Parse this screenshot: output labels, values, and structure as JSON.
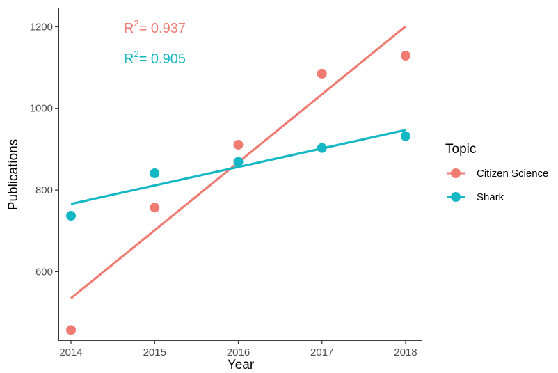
{
  "chart_data": {
    "type": "scatter",
    "title": "",
    "xlabel": "Year",
    "ylabel": "Publications",
    "xlim": [
      2013.85,
      2018.2
    ],
    "ylim": [
      432,
      1245
    ],
    "x_ticks": [
      2014,
      2015,
      2016,
      2017,
      2018
    ],
    "y_ticks": [
      600,
      800,
      1000,
      1200
    ],
    "x": [
      2014,
      2015,
      2016,
      2017,
      2018
    ],
    "grid": false,
    "legend": {
      "title": "Topic",
      "placement": "right"
    },
    "series": [
      {
        "name": "Citizen Science",
        "color": "#F07B72",
        "points": [
          457,
          757,
          911,
          1085,
          1129
        ],
        "fit": {
          "type": "linear",
          "start": [
            2014,
            535
          ],
          "end": [
            2018,
            1201
          ]
        },
        "r2": {
          "label": "R",
          "sup": "2",
          "value": "= 0.937"
        }
      },
      {
        "name": "Shark",
        "color": "#14B8C4",
        "points": [
          737,
          841,
          869,
          903,
          932
        ],
        "fit": {
          "type": "linear",
          "start": [
            2014,
            766
          ],
          "end": [
            2018,
            947
          ]
        },
        "r2": {
          "label": "R",
          "sup": "2",
          "value": "= 0.905"
        }
      }
    ]
  }
}
